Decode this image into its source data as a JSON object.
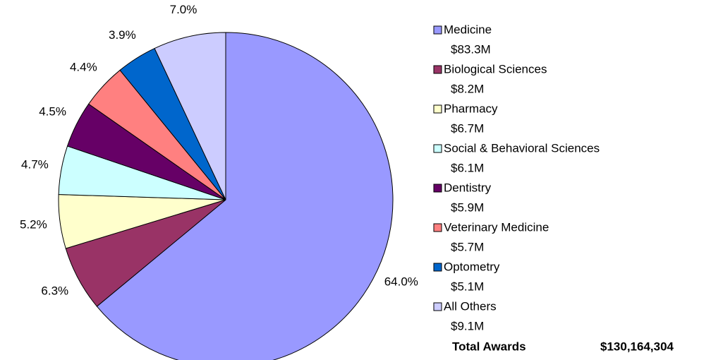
{
  "chart_data": {
    "type": "pie",
    "categories": [
      "Medicine",
      "Biological Sciences",
      "Pharmacy",
      "Social & Behavioral Sciences",
      "Dentistry",
      "Veterinary Medicine",
      "Optometry",
      "All Others"
    ],
    "values": [
      64.0,
      6.3,
      5.2,
      4.7,
      4.5,
      4.4,
      3.9,
      7.0
    ],
    "value_labels": [
      "64.0%",
      "6.3%",
      "5.2%",
      "4.7%",
      "4.5%",
      "4.4%",
      "3.9%",
      "7.0%"
    ],
    "colors": [
      "#9999ff",
      "#993366",
      "#ffffcc",
      "#ccffff",
      "#660066",
      "#ff8080",
      "#0066cc",
      "#ccccff"
    ],
    "legend_amounts": [
      "$83.3M",
      "$8.2M",
      "$6.7M",
      "$6.1M",
      "$5.9M",
      "$5.7M",
      "$5.1M",
      "$9.1M"
    ],
    "total_label": "Total Awards",
    "total_value": "$130,164,304",
    "legend": "right"
  }
}
